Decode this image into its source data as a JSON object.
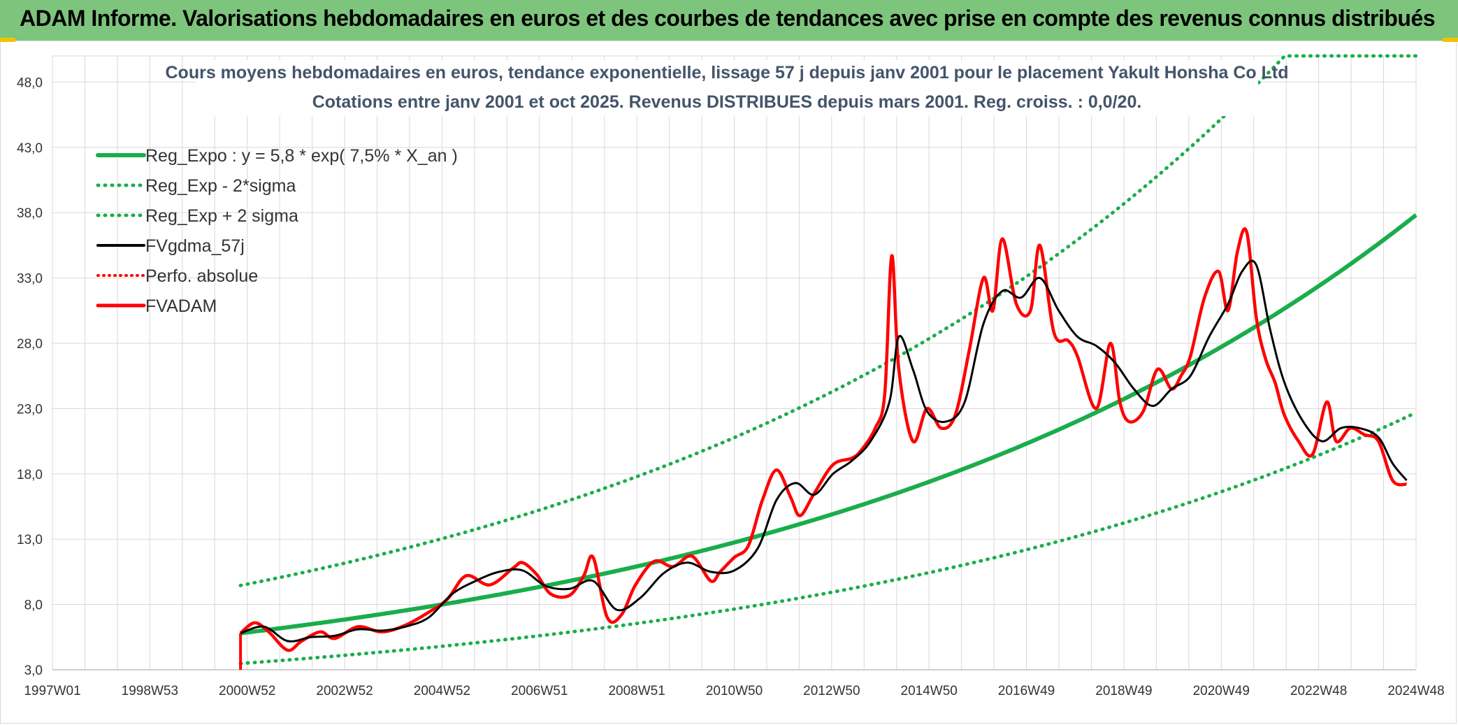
{
  "header": {
    "title": "ADAM Informe. Valorisations hebdomadaires en euros et des courbes de tendances avec prise en compte des revenus connus distribués"
  },
  "colors": {
    "banner": "#7dc57c",
    "regression": "#1aad4b",
    "price": "#ff0000",
    "smoothed": "#000000",
    "grid": "#d9d9d9"
  },
  "chart_data": {
    "type": "line",
    "title": [
      "Cours moyens hebdomadaires en euros, tendance exponentielle, lissage 57 j depuis janv 2001 pour le placement Yakult Honsha Co Ltd",
      "Cotations entre janv 2001 et oct 2025. Revenus DISTRIBUES depuis mars 2001. Reg. croiss. : 0,0/20."
    ],
    "xlabel": "",
    "ylabel": "",
    "x_tick_labels": [
      "1997W01",
      "1998W53",
      "2000W52",
      "2002W52",
      "2004W52",
      "2006W51",
      "2008W51",
      "2010W50",
      "2012W50",
      "2014W50",
      "2016W49",
      "2018W49",
      "2020W49",
      "2022W48",
      "2024W48"
    ],
    "y_tick_labels": [
      "3,0",
      "8,0",
      "13,0",
      "18,0",
      "23,0",
      "28,0",
      "33,0",
      "38,0",
      "43,0",
      "48,0"
    ],
    "xlim": [
      1997.0,
      2026.0
    ],
    "ylim": [
      3.0,
      50.0
    ],
    "grid": true,
    "legend_position": "top-left",
    "legend": [
      {
        "label": "Reg_Expo : y = 5,8 * exp( 7,5% *  X_an )",
        "style": "solid-green-thick"
      },
      {
        "label": "Reg_Exp - 2*sigma",
        "style": "dotted-green"
      },
      {
        "label": "Reg_Exp + 2 sigma",
        "style": "dotted-green"
      },
      {
        "label": "FVgdma_57j",
        "style": "solid-black"
      },
      {
        "label": "Perfo. absolue",
        "style": "dotted-red"
      },
      {
        "label": "FVADAM",
        "style": "solid-red"
      }
    ],
    "regression": {
      "a": 5.8,
      "rate": 0.075,
      "start": 2001.0,
      "end": 2026.0,
      "lower_factor": 0.6,
      "upper_factor": 1.63,
      "cap": 50.0
    },
    "series": [
      {
        "name": "FVADAM",
        "x": [
          2001.0,
          2001.3,
          2001.6,
          2002.0,
          2002.3,
          2002.7,
          2003.0,
          2003.5,
          2004.0,
          2004.5,
          2005.0,
          2005.4,
          2005.8,
          2006.3,
          2006.8,
          2007.0,
          2007.3,
          2007.6,
          2008.0,
          2008.3,
          2008.5,
          2008.8,
          2009.1,
          2009.4,
          2009.8,
          2010.2,
          2010.6,
          2011.0,
          2011.2,
          2011.5,
          2011.8,
          2012.1,
          2012.4,
          2012.7,
          2012.9,
          2013.2,
          2013.6,
          2014.0,
          2014.2,
          2014.5,
          2014.7,
          2014.85,
          2015.0,
          2015.3,
          2015.6,
          2015.9,
          2016.2,
          2016.5,
          2016.8,
          2017.0,
          2017.2,
          2017.5,
          2017.8,
          2018.0,
          2018.3,
          2018.6,
          2018.8,
          2019.2,
          2019.5,
          2019.7,
          2019.9,
          2020.2,
          2020.5,
          2020.8,
          2021.0,
          2021.2,
          2021.5,
          2021.8,
          2022.0,
          2022.2,
          2022.4,
          2022.6,
          2022.8,
          2023.0,
          2023.2,
          2023.5,
          2023.8,
          2024.1,
          2024.3,
          2024.6,
          2024.9,
          2025.2,
          2025.5,
          2025.8
        ],
        "values": [
          5.8,
          6.6,
          5.9,
          4.5,
          5.2,
          5.9,
          5.4,
          6.3,
          5.9,
          6.4,
          7.4,
          8.4,
          10.2,
          9.5,
          10.8,
          11.2,
          10.3,
          8.8,
          8.7,
          10.2,
          11.6,
          7.0,
          7.2,
          9.5,
          11.3,
          10.9,
          11.7,
          9.8,
          10.5,
          11.6,
          12.5,
          16.0,
          18.3,
          16.2,
          14.8,
          16.5,
          18.7,
          19.2,
          19.8,
          21.5,
          24.1,
          34.7,
          26.0,
          20.5,
          23.0,
          21.5,
          22.5,
          27.5,
          33.0,
          30.5,
          36.0,
          31.0,
          30.5,
          35.5,
          28.8,
          28.2,
          27.0,
          23.0,
          28.0,
          23.5,
          22.0,
          22.8,
          26.0,
          24.5,
          25.5,
          27.0,
          31.5,
          33.5,
          30.5,
          35.0,
          36.5,
          30.0,
          26.8,
          25.0,
          22.5,
          20.5,
          19.5,
          23.5,
          20.5,
          21.5,
          21.0,
          20.5,
          17.5,
          17.2
        ]
      },
      {
        "name": "FVgdma_57j",
        "x": [
          2001.0,
          2001.5,
          2002.0,
          2002.5,
          2003.0,
          2003.5,
          2004.0,
          2004.5,
          2005.0,
          2005.5,
          2006.0,
          2006.5,
          2007.0,
          2007.5,
          2008.0,
          2008.5,
          2009.0,
          2009.5,
          2010.0,
          2010.5,
          2011.0,
          2011.5,
          2012.0,
          2012.4,
          2012.8,
          2013.2,
          2013.6,
          2014.0,
          2014.4,
          2014.8,
          2015.0,
          2015.3,
          2015.6,
          2016.0,
          2016.4,
          2016.8,
          2017.2,
          2017.6,
          2018.0,
          2018.4,
          2018.8,
          2019.2,
          2019.6,
          2020.0,
          2020.4,
          2020.8,
          2021.2,
          2021.6,
          2022.0,
          2022.3,
          2022.6,
          2022.9,
          2023.2,
          2023.6,
          2024.0,
          2024.4,
          2024.8,
          2025.2,
          2025.5,
          2025.8
        ],
        "values": [
          5.8,
          6.3,
          5.2,
          5.5,
          5.6,
          6.1,
          6.0,
          6.3,
          7.0,
          8.8,
          9.8,
          10.5,
          10.6,
          9.4,
          9.2,
          9.8,
          7.6,
          8.5,
          10.4,
          11.2,
          10.5,
          10.6,
          12.3,
          16.0,
          17.3,
          16.4,
          18.0,
          19.0,
          20.5,
          23.5,
          28.5,
          26.0,
          22.8,
          22.0,
          23.5,
          29.5,
          32.0,
          31.5,
          33.0,
          30.5,
          28.5,
          27.8,
          26.5,
          24.5,
          23.2,
          24.5,
          25.5,
          28.5,
          31.0,
          33.5,
          34.0,
          29.0,
          25.0,
          22.0,
          20.5,
          21.5,
          21.5,
          20.8,
          18.8,
          17.5
        ]
      }
    ]
  }
}
